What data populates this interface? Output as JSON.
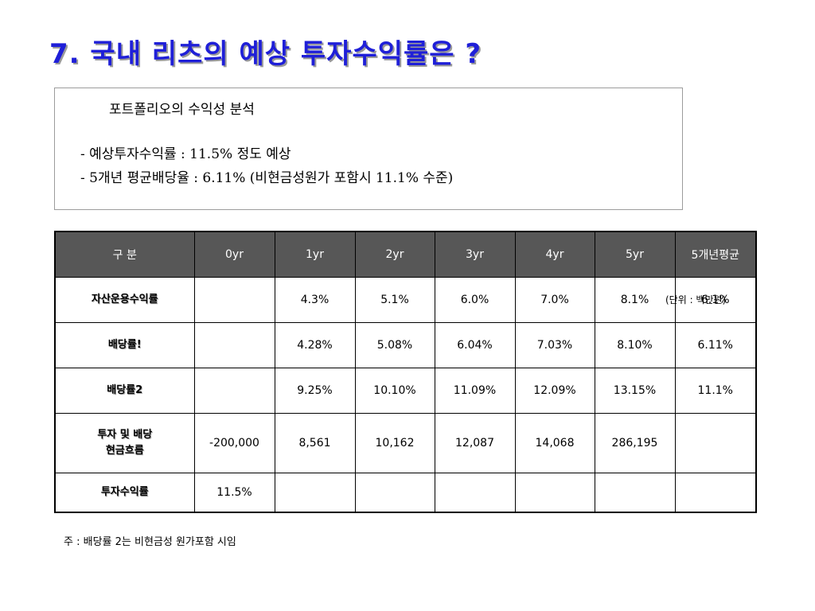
{
  "title": "7. 국내 리츠의 예상 투자수익률은 ?",
  "summary": {
    "heading": "포트폴리오의 수익성 분석",
    "lines": [
      "- 예상투자수익률 : 11.5% 정도 예상",
      "- 5개년 평균배당율 : 6.11% (비현금성원가 포함시 11.1% 수준)"
    ]
  },
  "unit_note": "(단위 : 백만원)",
  "table": {
    "headers": [
      "구  분",
      "0yr",
      "1yr",
      "2yr",
      "3yr",
      "4yr",
      "5yr",
      "5개년평균"
    ],
    "rows": [
      {
        "label": "자산운용수익률",
        "cells": [
          "",
          "4.3%",
          "5.1%",
          "6.0%",
          "7.0%",
          "8.1%",
          "6.1%"
        ]
      },
      {
        "label": "배당률!",
        "cells": [
          "",
          "4.28%",
          "5.08%",
          "6.04%",
          "7.03%",
          "8.10%",
          "6.11%"
        ]
      },
      {
        "label": "배당률2",
        "cells": [
          "",
          "9.25%",
          "10.10%",
          "11.09%",
          "12.09%",
          "13.15%",
          "11.1%"
        ]
      },
      {
        "label": "투자 및 배당\n현금흐름",
        "cells": [
          "-200,000",
          "8,561",
          "10,162",
          "12,087",
          "14,068",
          "286,195",
          ""
        ]
      },
      {
        "label": "투자수익률",
        "cells": [
          "11.5%",
          "",
          "",
          "",
          "",
          "",
          ""
        ]
      }
    ]
  },
  "footnote": "주 : 배당률 2는 비현금성 원가포함 시임"
}
